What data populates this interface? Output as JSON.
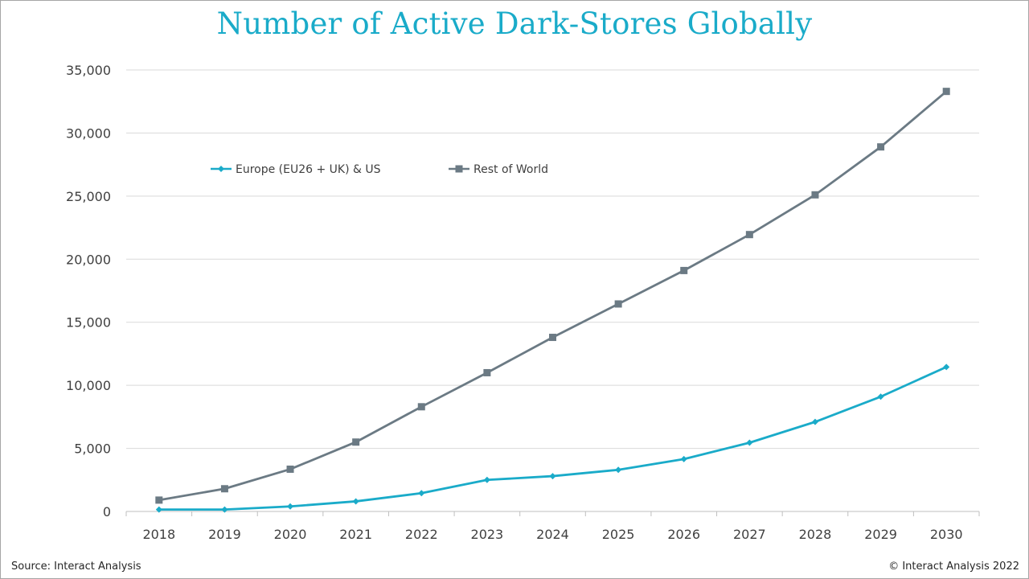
{
  "chart_data": {
    "type": "line",
    "title": "Number of Active Dark-Stores Globally",
    "categories": [
      "2018",
      "2019",
      "2020",
      "2021",
      "2022",
      "2023",
      "2024",
      "2025",
      "2026",
      "2027",
      "2028",
      "2029",
      "2030"
    ],
    "series": [
      {
        "name": "Europe (EU26 + UK) & US",
        "color": "#1aabc9",
        "marker": "diamond",
        "values": [
          150,
          150,
          400,
          800,
          1450,
          2500,
          2800,
          3300,
          4150,
          5450,
          7100,
          9100,
          11450
        ]
      },
      {
        "name": "Rest of World",
        "color": "#6b7a84",
        "marker": "square",
        "values": [
          900,
          1800,
          3350,
          5500,
          8300,
          11000,
          13800,
          16450,
          19100,
          21950,
          25100,
          28900,
          33300
        ]
      }
    ],
    "ylim": [
      0,
      35000
    ],
    "yticks": [
      0,
      5000,
      10000,
      15000,
      20000,
      25000,
      30000,
      35000
    ],
    "ytick_labels": [
      "0",
      "5,000",
      "10,000",
      "15,000",
      "20,000",
      "25,000",
      "30,000",
      "35,000"
    ],
    "xlabel": "",
    "ylabel": "",
    "grid": true,
    "legend_position": "top-left"
  },
  "footer": {
    "source": "Source: Interact Analysis",
    "copyright": "© Interact Analysis 2022"
  }
}
